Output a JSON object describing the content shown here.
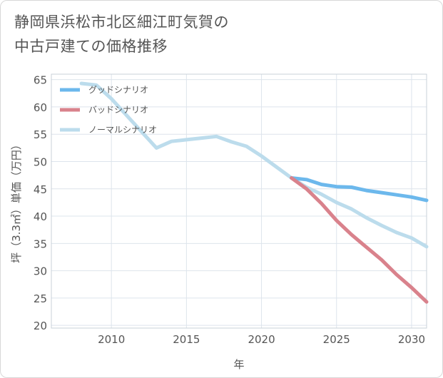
{
  "title_lines": [
    "静岡県浜松市北区細江町気賀の",
    "中古戸建ての価格推移"
  ],
  "colors": {
    "good": "#6cb8ec",
    "bad": "#d9828c",
    "normal": "#bcdcec",
    "grid": "#dde4ec",
    "axis": "#555555"
  },
  "chart_data": {
    "type": "line",
    "title": "静岡県浜松市北区細江町気賀の中古戸建ての価格推移",
    "xlabel": "年",
    "ylabel": "坪（3.3㎡）単価（万円）",
    "xlim": [
      2006,
      2031
    ],
    "ylim": [
      19.5,
      66
    ],
    "xticks": [
      2010,
      2015,
      2020,
      2025,
      2030
    ],
    "yticks": [
      20,
      25,
      30,
      35,
      40,
      45,
      50,
      55,
      60,
      65
    ],
    "legend_position": "top-left",
    "series": [
      {
        "name": "グッドシナリオ",
        "key": "good",
        "x": [
          2022,
          2023,
          2024,
          2025,
          2026,
          2027,
          2028,
          2029,
          2030,
          2031
        ],
        "y": [
          47.0,
          46.7,
          45.8,
          45.4,
          45.3,
          44.7,
          44.3,
          43.9,
          43.5,
          42.9
        ]
      },
      {
        "name": "バッドシナリオ",
        "key": "bad",
        "x": [
          2022,
          2023,
          2024,
          2025,
          2026,
          2027,
          2028,
          2029,
          2030,
          2031
        ],
        "y": [
          47.0,
          45.0,
          42.3,
          39.2,
          36.6,
          34.3,
          32.0,
          29.3,
          26.9,
          24.3
        ]
      },
      {
        "name": "ノーマルシナリオ",
        "key": "normal",
        "x": [
          2008,
          2009,
          2010,
          2011,
          2012,
          2013,
          2014,
          2015,
          2016,
          2017,
          2018,
          2019,
          2020,
          2021,
          2022,
          2023,
          2024,
          2025,
          2026,
          2027,
          2028,
          2029,
          2030,
          2031
        ],
        "y": [
          64.3,
          64.0,
          61.5,
          58.5,
          55.5,
          52.5,
          53.7,
          54.0,
          54.3,
          54.6,
          53.6,
          52.8,
          51.0,
          49.0,
          47.0,
          45.3,
          44.0,
          42.5,
          41.3,
          39.7,
          38.3,
          37.0,
          36.0,
          34.4
        ]
      }
    ]
  }
}
